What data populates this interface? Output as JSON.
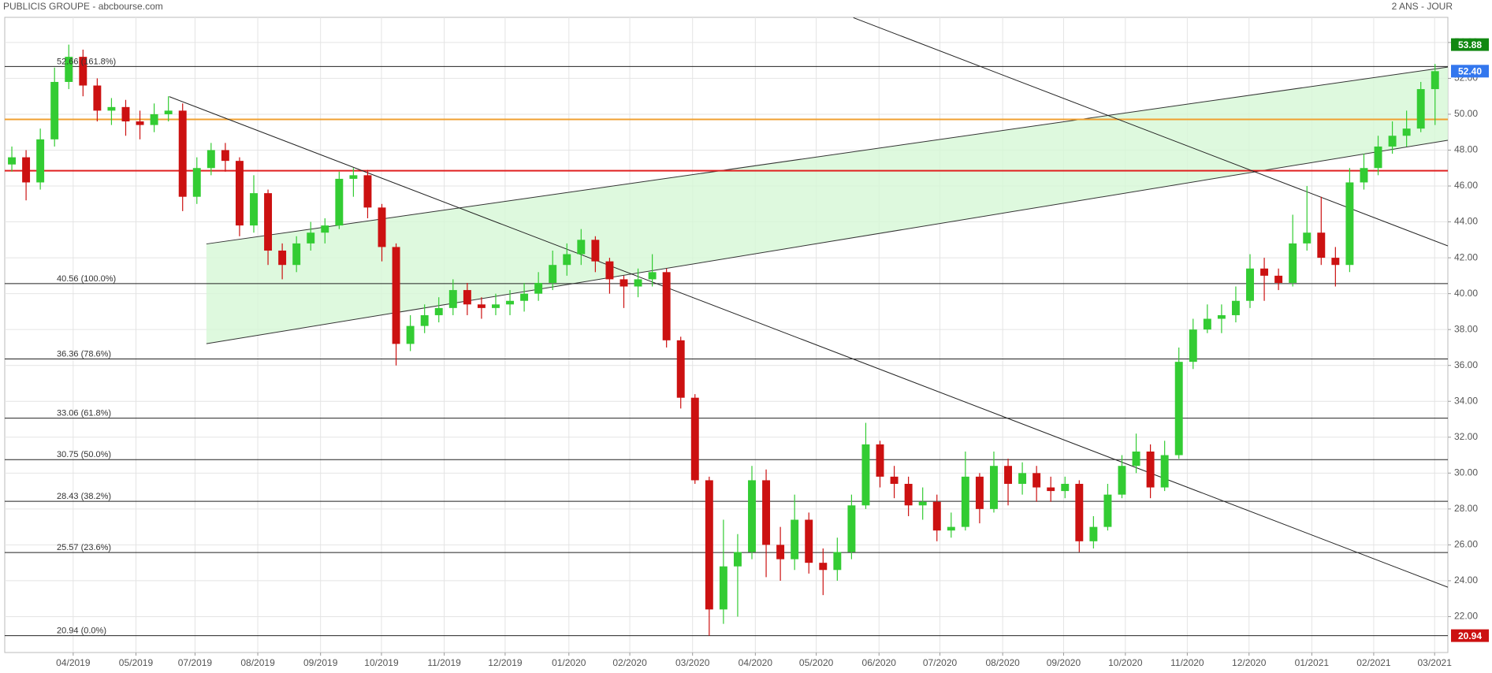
{
  "chart_data": {
    "type": "candlestick",
    "title": "PUBLICIS GROUPE - abcbourse.com",
    "subtitle": "2 ANS - JOUR",
    "colors": {
      "up": "#33cc33",
      "down": "#cc1111",
      "grid": "#e4e4e4"
    },
    "grid": true,
    "xlim": [
      0,
      101.4
    ],
    "ylim": [
      20,
      55.4
    ],
    "xticks": [
      {
        "value": 4.81,
        "label": "04/2019"
      },
      {
        "value": 9.22,
        "label": "05/2019"
      },
      {
        "value": 13.37,
        "label": "07/2019"
      },
      {
        "value": 17.78,
        "label": "08/2019"
      },
      {
        "value": 22.19,
        "label": "09/2019"
      },
      {
        "value": 26.47,
        "label": "10/2019"
      },
      {
        "value": 30.88,
        "label": "11/2019"
      },
      {
        "value": 35.16,
        "label": "12/2019"
      },
      {
        "value": 39.64,
        "label": "01/2020"
      },
      {
        "value": 43.92,
        "label": "02/2020"
      },
      {
        "value": 48.33,
        "label": "03/2020"
      },
      {
        "value": 52.74,
        "label": "04/2020"
      },
      {
        "value": 57.02,
        "label": "05/2020"
      },
      {
        "value": 61.43,
        "label": "06/2020"
      },
      {
        "value": 65.71,
        "label": "07/2020"
      },
      {
        "value": 70.12,
        "label": "08/2020"
      },
      {
        "value": 74.4,
        "label": "09/2020"
      },
      {
        "value": 78.74,
        "label": "10/2020"
      },
      {
        "value": 83.09,
        "label": "11/2020"
      },
      {
        "value": 87.43,
        "label": "12/2020"
      },
      {
        "value": 91.84,
        "label": "01/2021"
      },
      {
        "value": 96.19,
        "label": "02/2021"
      },
      {
        "value": 100.47,
        "label": "03/2021"
      }
    ],
    "yticks": [
      {
        "value": 22,
        "label": "22.00"
      },
      {
        "value": 24,
        "label": "24.00"
      },
      {
        "value": 26,
        "label": "26.00"
      },
      {
        "value": 28,
        "label": "28.00"
      },
      {
        "value": 30,
        "label": "30.00"
      },
      {
        "value": 32,
        "label": "32.00"
      },
      {
        "value": 34,
        "label": "34.00"
      },
      {
        "value": 36,
        "label": "36.00"
      },
      {
        "value": 38,
        "label": "38.00"
      },
      {
        "value": 40,
        "label": "40.00"
      },
      {
        "value": 42,
        "label": "42.00"
      },
      {
        "value": 44,
        "label": "44.00"
      },
      {
        "value": 46,
        "label": "46.00"
      },
      {
        "value": 48,
        "label": "48.00"
      },
      {
        "value": 50,
        "label": "50.00"
      },
      {
        "value": 52,
        "label": "52.00"
      },
      {
        "value": 54,
        "label": "54.00"
      }
    ],
    "x": [
      0.5,
      1.5,
      2.5,
      3.5,
      4.5,
      5.5,
      6.5,
      7.5,
      8.5,
      9.5,
      10.5,
      11.5,
      12.5,
      13.5,
      14.5,
      15.5,
      16.5,
      17.5,
      18.5,
      19.5,
      20.5,
      21.5,
      22.5,
      23.5,
      24.5,
      25.5,
      26.5,
      27.5,
      28.5,
      29.5,
      30.5,
      31.5,
      32.5,
      33.5,
      34.5,
      35.5,
      36.5,
      37.5,
      38.5,
      39.5,
      40.5,
      41.5,
      42.5,
      43.5,
      44.5,
      45.5,
      46.5,
      47.5,
      48.5,
      49.5,
      50.5,
      51.5,
      52.5,
      53.5,
      54.5,
      55.5,
      56.5,
      57.5,
      58.5,
      59.5,
      60.5,
      61.5,
      62.5,
      63.5,
      64.5,
      65.5,
      66.5,
      67.5,
      68.5,
      69.5,
      70.5,
      71.5,
      72.5,
      73.5,
      74.5,
      75.5,
      76.5,
      77.5,
      78.5,
      79.5,
      80.5,
      81.5,
      82.5,
      83.5,
      84.5,
      85.5,
      86.5,
      87.5,
      88.5,
      89.5,
      90.5,
      91.5,
      92.5,
      93.5,
      94.5,
      95.5,
      96.5,
      97.5,
      98.5,
      99.5,
      100.5
    ],
    "open": [
      47.2,
      47.6,
      46.2,
      48.6,
      51.8,
      53.2,
      51.6,
      50.2,
      50.4,
      49.6,
      49.4,
      50.0,
      50.2,
      45.4,
      47.0,
      48.0,
      47.4,
      43.8,
      45.6,
      42.4,
      41.6,
      42.8,
      43.4,
      43.8,
      46.4,
      46.6,
      44.8,
      42.6,
      37.2,
      38.2,
      38.8,
      39.2,
      40.2,
      39.4,
      39.2,
      39.4,
      39.6,
      40.0,
      40.6,
      41.6,
      42.2,
      43.0,
      41.8,
      40.8,
      40.4,
      40.8,
      41.2,
      37.4,
      34.2,
      29.6,
      22.4,
      24.8,
      25.6,
      29.6,
      26.0,
      25.2,
      27.4,
      25.0,
      24.6,
      25.6,
      28.2,
      31.6,
      29.8,
      29.4,
      28.2,
      28.4,
      26.8,
      27.0,
      29.8,
      28.0,
      30.4,
      29.4,
      30.0,
      29.2,
      29.0,
      29.4,
      26.2,
      27.0,
      28.8,
      30.4,
      31.2,
      29.2,
      31.0,
      36.2,
      38.0,
      38.6,
      38.8,
      39.6,
      41.4,
      41.0,
      40.6,
      42.8,
      43.4,
      42.0,
      41.6,
      46.2,
      47.0,
      48.2,
      48.8,
      49.2,
      51.4
    ],
    "high": [
      48.2,
      48.0,
      49.2,
      52.6,
      53.88,
      53.6,
      52.0,
      50.9,
      50.8,
      50.2,
      50.6,
      51.0,
      50.6,
      47.6,
      48.4,
      48.4,
      47.6,
      46.6,
      45.8,
      42.8,
      43.2,
      44.0,
      44.2,
      46.8,
      47.0,
      46.9,
      45.0,
      42.8,
      38.8,
      39.4,
      39.8,
      40.8,
      40.6,
      39.8,
      40.0,
      40.2,
      40.6,
      41.2,
      42.4,
      42.8,
      43.6,
      43.2,
      42.0,
      41.0,
      41.4,
      42.2,
      41.4,
      37.6,
      34.4,
      29.8,
      27.4,
      26.6,
      30.4,
      30.2,
      27.0,
      28.8,
      27.8,
      25.8,
      26.4,
      28.8,
      32.8,
      31.8,
      30.4,
      29.8,
      29.2,
      28.8,
      27.8,
      31.2,
      30.0,
      31.2,
      30.8,
      30.6,
      30.4,
      29.8,
      29.8,
      29.6,
      27.6,
      29.4,
      31.0,
      32.2,
      31.6,
      31.8,
      37.0,
      38.6,
      39.4,
      39.4,
      40.4,
      42.2,
      42.0,
      41.4,
      44.4,
      46.0,
      45.4,
      42.6,
      47.0,
      47.8,
      48.8,
      49.6,
      50.2,
      51.8,
      52.8
    ],
    "low": [
      46.8,
      45.2,
      45.8,
      48.2,
      51.4,
      51.0,
      49.6,
      49.4,
      48.8,
      48.6,
      49.0,
      49.6,
      44.6,
      45.0,
      46.6,
      46.8,
      43.2,
      43.4,
      41.6,
      40.8,
      41.2,
      42.4,
      42.8,
      43.6,
      45.4,
      44.2,
      41.8,
      36.0,
      36.8,
      37.8,
      38.4,
      38.8,
      38.8,
      38.6,
      38.8,
      38.8,
      39.0,
      39.6,
      40.2,
      41.0,
      41.6,
      41.2,
      40.0,
      39.2,
      39.8,
      40.4,
      37.0,
      33.6,
      29.4,
      20.94,
      21.6,
      22.0,
      25.2,
      24.2,
      24.0,
      24.6,
      24.4,
      23.2,
      24.0,
      25.2,
      28.0,
      29.2,
      28.6,
      27.6,
      27.4,
      26.2,
      26.4,
      26.8,
      27.2,
      27.8,
      28.2,
      28.8,
      28.4,
      28.4,
      28.6,
      25.6,
      25.8,
      26.8,
      28.6,
      30.0,
      28.6,
      29.0,
      30.8,
      35.8,
      37.8,
      37.8,
      38.4,
      39.2,
      39.6,
      40.2,
      40.4,
      42.4,
      41.6,
      40.4,
      41.2,
      45.8,
      46.6,
      47.8,
      48.2,
      49.0,
      49.4
    ],
    "close": [
      47.6,
      46.2,
      48.6,
      51.8,
      53.2,
      51.6,
      50.2,
      50.4,
      49.6,
      49.4,
      50.0,
      50.2,
      45.4,
      47.0,
      48.0,
      47.4,
      43.8,
      45.6,
      42.4,
      41.6,
      42.8,
      43.4,
      43.8,
      46.4,
      46.6,
      44.8,
      42.6,
      37.2,
      38.2,
      38.8,
      39.2,
      40.2,
      39.4,
      39.2,
      39.4,
      39.6,
      40.0,
      40.6,
      41.6,
      42.2,
      43.0,
      41.8,
      40.8,
      40.4,
      40.8,
      41.2,
      37.4,
      34.2,
      29.6,
      22.4,
      24.8,
      25.6,
      29.6,
      26.0,
      25.2,
      27.4,
      25.0,
      24.6,
      25.6,
      28.2,
      31.6,
      29.8,
      29.4,
      28.2,
      28.4,
      26.8,
      27.0,
      29.8,
      28.0,
      30.4,
      29.4,
      30.0,
      29.2,
      29.0,
      29.4,
      26.2,
      27.0,
      28.8,
      30.4,
      31.2,
      29.2,
      31.0,
      36.2,
      38.0,
      38.6,
      38.8,
      39.6,
      41.4,
      41.0,
      40.6,
      42.8,
      43.4,
      42.0,
      41.6,
      46.2,
      47.0,
      48.2,
      48.8,
      49.2,
      51.4,
      52.4
    ],
    "fib_levels": [
      {
        "value": 52.66,
        "label": "52.66  (161.8%)"
      },
      {
        "value": 40.56,
        "label": "40.56  (100.0%)"
      },
      {
        "value": 36.36,
        "label": "36.36  (78.6%)"
      },
      {
        "value": 33.06,
        "label": "33.06  (61.8%)"
      },
      {
        "value": 30.75,
        "label": "30.75  (50.0%)"
      },
      {
        "value": 28.43,
        "label": "28.43  (38.2%)"
      },
      {
        "value": 25.57,
        "label": "25.57  (23.6%)"
      },
      {
        "value": 20.94,
        "label": "20.94  (0.0%)"
      }
    ],
    "hlines": [
      {
        "value": 49.71,
        "color": "#f0a030"
      },
      {
        "value": 46.85,
        "color": "#e02020"
      }
    ],
    "channel": {
      "x": [
        14.17,
        101.4
      ],
      "upper": [
        42.77,
        52.63
      ],
      "lower": [
        37.21,
        48.55
      ],
      "fill": "#d6f8d6"
    },
    "trendlines": [
      {
        "x": [
          11.56,
          101.4
        ],
        "y": [
          50.98,
          23.64
        ]
      },
      {
        "x": [
          59.63,
          101.4
        ],
        "y": [
          55.38,
          42.66
        ]
      }
    ],
    "price_tags": [
      {
        "value": 53.88,
        "label": "53.88",
        "color": "#118811"
      },
      {
        "value": 52.4,
        "label": "52.40",
        "color": "#3377ee"
      },
      {
        "value": 20.94,
        "label": "20.94",
        "color": "#cc1111"
      }
    ]
  }
}
